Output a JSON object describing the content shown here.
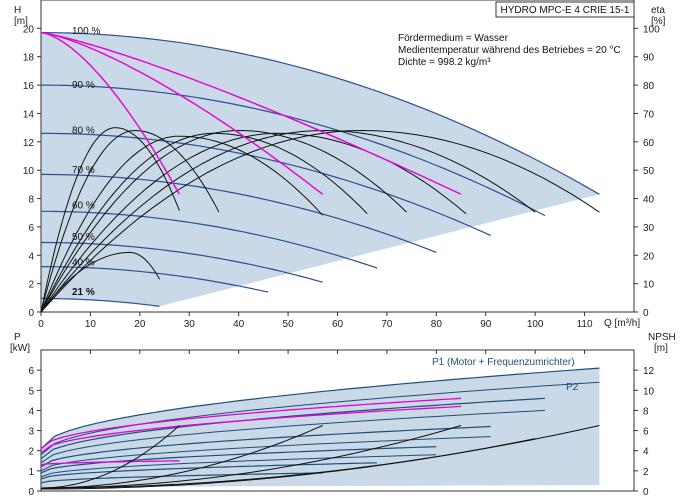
{
  "title": "HYDRO MPC-E 4 CRIE 15-1",
  "info_lines": [
    "Fördermedium = Wasser",
    "Medientemperatur während des Betriebes = 20 °C",
    "Dichte = 998.2 kg/m³"
  ],
  "colors": {
    "area": "#c9d9e7",
    "head_curves": "#2f4f8f",
    "eff_curves": "#111111",
    "max_curves": "#e600d6",
    "power_curves": "#1f4e79",
    "npsh_curves": "#111111"
  },
  "chart_data": [
    {
      "type": "line",
      "name": "head",
      "ylabel": "H",
      "yunit": "[m]",
      "y2label": "eta",
      "y2unit": "[%]",
      "xlabel": "Q [m³/h]",
      "xlim": [
        0,
        120
      ],
      "ylim": [
        0,
        22
      ],
      "y2lim": [
        0,
        110
      ],
      "xticks": [
        0,
        10,
        20,
        30,
        40,
        50,
        60,
        70,
        80,
        90,
        100,
        110
      ],
      "yticks": [
        0,
        2,
        4,
        6,
        8,
        10,
        12,
        14,
        16,
        18,
        20
      ],
      "y2ticks": [
        0,
        10,
        20,
        30,
        40,
        50,
        60,
        70,
        80,
        90,
        100
      ],
      "speed_labels": [
        "100 %",
        "90 %",
        "80 %",
        "70 %",
        "60 %",
        "50 %",
        "40 %",
        "21 %"
      ],
      "speed_label_heads": [
        19.8,
        16,
        12.8,
        10,
        7.5,
        5.3,
        3.5,
        1.4
      ],
      "speed_curves": [
        {
          "h0": 19.7,
          "qmax": 113,
          "hend": 8.3
        },
        {
          "h0": 16.0,
          "qmax": 102,
          "hend": 6.8
        },
        {
          "h0": 12.6,
          "qmax": 91,
          "hend": 5.4
        },
        {
          "h0": 9.7,
          "qmax": 80,
          "hend": 4.2
        },
        {
          "h0": 7.1,
          "qmax": 68,
          "hend": 3.1
        },
        {
          "h0": 4.9,
          "qmax": 57,
          "hend": 2.1
        },
        {
          "h0": 3.2,
          "qmax": 46,
          "hend": 1.4
        },
        {
          "h0": 0.95,
          "qmax": 24,
          "hend": 0.4
        }
      ],
      "pink_curves": [
        {
          "q0": 0,
          "h0": 19.7,
          "q1": 28,
          "h1": 8.3,
          "bend": 0.55
        },
        {
          "q0": 0,
          "h0": 19.7,
          "q1": 57,
          "h1": 8.3,
          "bend": 0.35
        },
        {
          "q0": 0,
          "h0": 19.7,
          "q1": 85,
          "h1": 8.3,
          "bend": 0.22
        }
      ],
      "eff_curves": [
        {
          "qpeak": 15,
          "peak": 65,
          "qend": 28
        },
        {
          "qpeak": 19,
          "peak": 64,
          "qend": 36
        },
        {
          "qpeak": 28,
          "peak": 62,
          "qend": 57
        },
        {
          "qpeak": 35,
          "peak": 63,
          "qend": 66
        },
        {
          "qpeak": 40,
          "peak": 64,
          "qend": 74
        },
        {
          "qpeak": 48,
          "peak": 63,
          "qend": 86
        },
        {
          "qpeak": 57,
          "peak": 64,
          "qend": 100
        },
        {
          "qpeak": 65,
          "peak": 64,
          "qend": 113
        },
        {
          "qpeak": 18,
          "peak": 21,
          "qend": 24
        }
      ]
    },
    {
      "type": "line",
      "name": "power",
      "ylabel": "P",
      "yunit": "[kW]",
      "y2label": "NPSH",
      "y2unit": "[m]",
      "xlim": [
        0,
        120
      ],
      "ylim": [
        0,
        7
      ],
      "y2lim": [
        0,
        14
      ],
      "yticks": [
        0,
        1,
        2,
        3,
        4,
        5,
        6
      ],
      "y2ticks": [
        0,
        2,
        4,
        6,
        8,
        10,
        12
      ],
      "series_labels": [
        "P1 (Motor + Frequenzumrichter)",
        "P2"
      ],
      "p1_curves": [
        {
          "q1": 113,
          "p0": 2.1,
          "p1": 6.1
        },
        {
          "q1": 102,
          "p0": 1.6,
          "p1": 4.6
        },
        {
          "q1": 91,
          "p0": 1.2,
          "p1": 3.2
        },
        {
          "q1": 80,
          "p0": 0.9,
          "p1": 2.2
        },
        {
          "q1": 68,
          "p0": 0.6,
          "p1": 1.4
        },
        {
          "q1": 57,
          "p0": 0.4,
          "p1": 0.9
        }
      ],
      "p2_curves": [
        {
          "q1": 113,
          "p0": 1.8,
          "p1": 5.4
        },
        {
          "q1": 102,
          "p0": 1.4,
          "p1": 4.0
        },
        {
          "q1": 91,
          "p0": 1.0,
          "p1": 2.7
        },
        {
          "q1": 80,
          "p0": 0.7,
          "p1": 1.8
        }
      ],
      "pink_p_curves": [
        {
          "q0": 0,
          "p0": 2.1,
          "q1": 85,
          "p1": 4.6
        },
        {
          "q0": 0,
          "p0": 1.9,
          "q1": 85,
          "p1": 4.2
        },
        {
          "q0": 0,
          "p0": 1.3,
          "q1": 28,
          "p1": 1.5
        }
      ],
      "npsh_curves": [
        {
          "q0": 0,
          "n0": 0.3,
          "q1": 28,
          "n1": 6.5
        },
        {
          "q0": 0,
          "n0": 0.3,
          "q1": 57,
          "n1": 6.5
        },
        {
          "q0": 0,
          "n0": 0.3,
          "q1": 85,
          "n1": 6.5
        },
        {
          "q0": 0,
          "n0": 0.3,
          "q1": 113,
          "n1": 6.5
        },
        {
          "q0": 0,
          "n0": 0.2,
          "q1": 100,
          "n1": 5.2
        }
      ]
    }
  ]
}
